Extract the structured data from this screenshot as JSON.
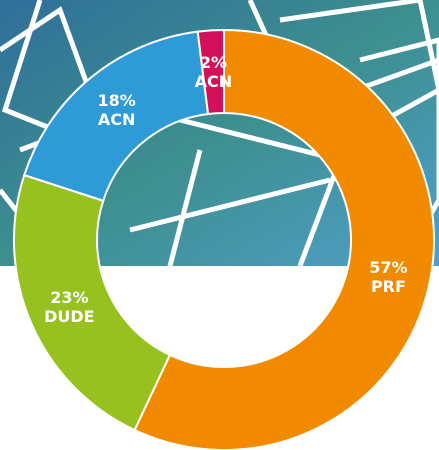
{
  "chart_data": {
    "type": "donut",
    "categories": [
      "PRF",
      "DUDE",
      "ACN",
      "ACN"
    ],
    "values": [
      57,
      23,
      18,
      2
    ],
    "value_labels": [
      "57%",
      "23%",
      "18%",
      "2%"
    ],
    "colors": [
      "#f28a00",
      "#96c11f",
      "#2e9bd6",
      "#d4105a"
    ]
  }
}
